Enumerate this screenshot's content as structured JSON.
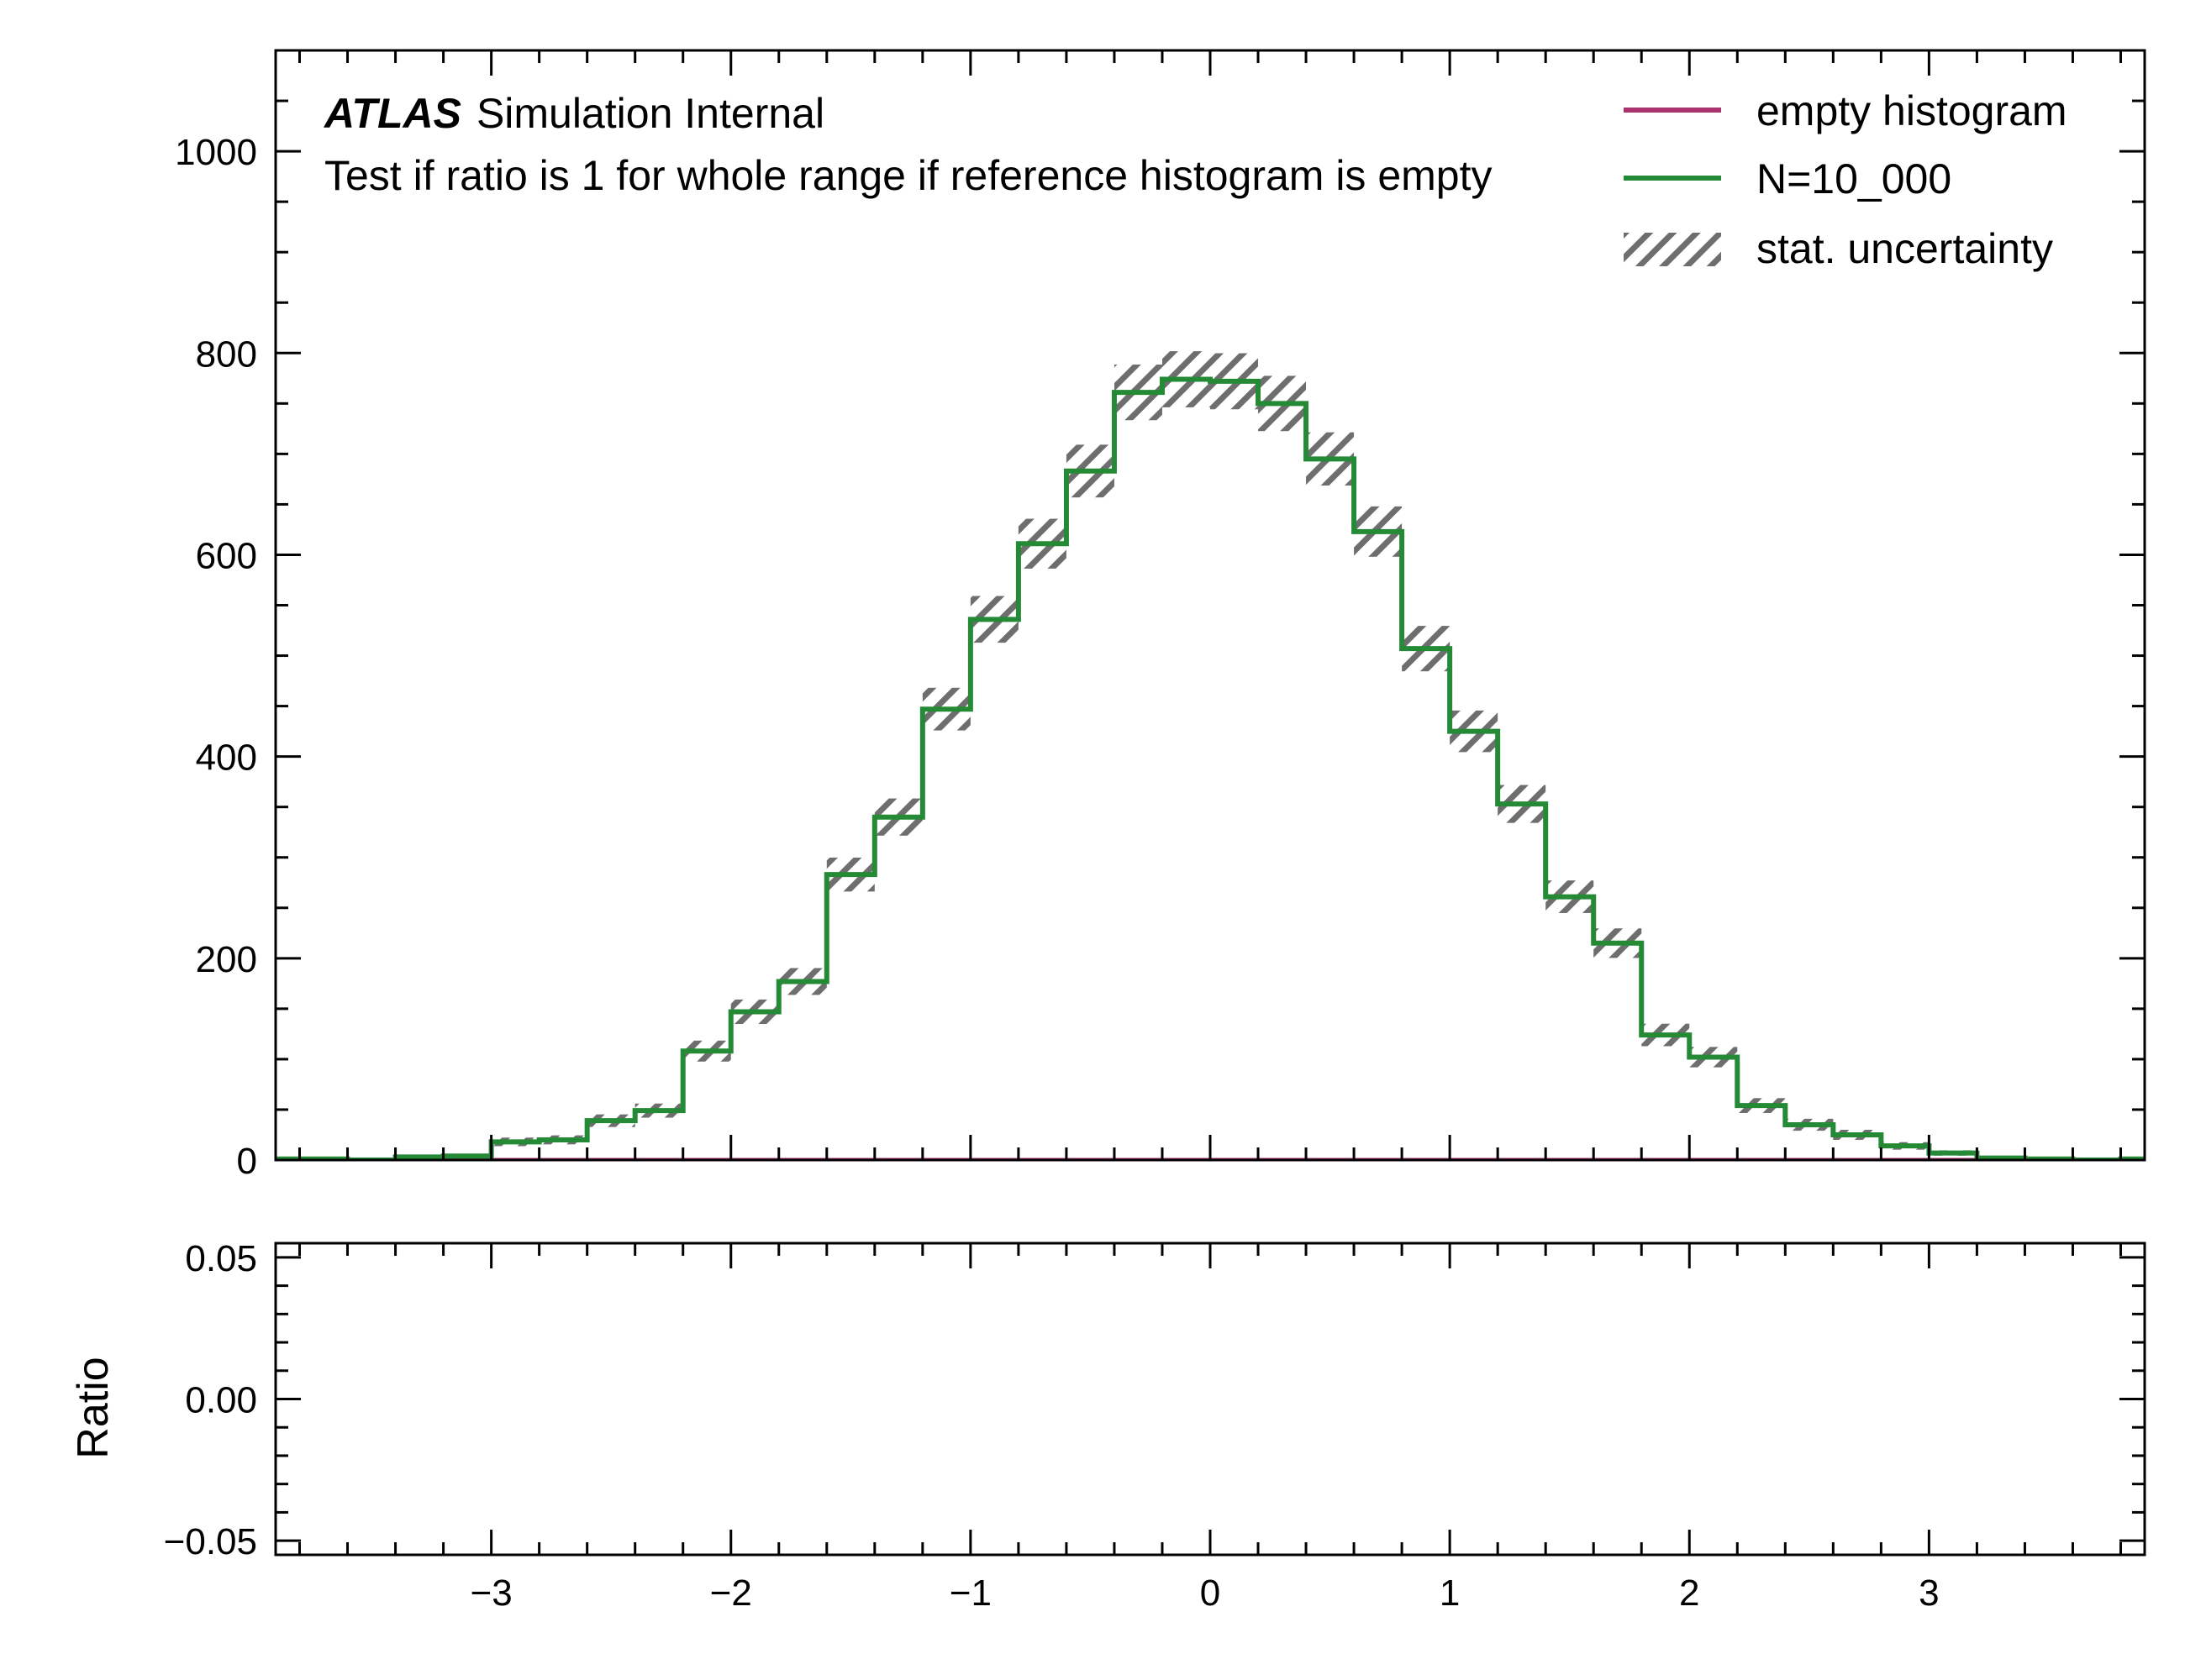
{
  "chart_data": [
    {
      "panel": "main",
      "type": "histogram",
      "experiment_label": "ATLAS",
      "status_label": "Simulation Internal",
      "subtitle": "Test if ratio is 1 for whole range if reference histogram is empty",
      "xlabel": "",
      "ylabel": "",
      "xlim": [
        -3.9,
        3.9
      ],
      "ylim": [
        0,
        1100
      ],
      "x_ticks": [
        -3,
        -2,
        -1,
        0,
        1,
        2,
        3
      ],
      "x_tick_labels": [
        "−3",
        "−2",
        "−1",
        "0",
        "1",
        "2",
        "3"
      ],
      "y_ticks": [
        0,
        200,
        400,
        600,
        800,
        1000
      ],
      "y_tick_labels": [
        "0",
        "200",
        "400",
        "600",
        "800",
        "1000"
      ],
      "bin_edges": [
        -4.0,
        -3.8,
        -3.6,
        -3.4,
        -3.2,
        -3.0,
        -2.8,
        -2.6,
        -2.4,
        -2.2,
        -2.0,
        -1.8,
        -1.6,
        -1.4,
        -1.2,
        -1.0,
        -0.8,
        -0.6,
        -0.4,
        -0.2,
        0.0,
        0.2,
        0.4,
        0.6,
        0.8,
        1.0,
        1.2,
        1.4,
        1.6,
        1.8,
        2.0,
        2.2,
        2.4,
        2.6,
        2.8,
        3.0,
        3.2,
        3.4,
        3.6,
        3.8,
        4.0
      ],
      "series": [
        {
          "name": "empty histogram",
          "color": "#a8336e",
          "values": [
            0,
            0,
            0,
            0,
            0,
            0,
            0,
            0,
            0,
            0,
            0,
            0,
            0,
            0,
            0,
            0,
            0,
            0,
            0,
            0,
            0,
            0,
            0,
            0,
            0,
            0,
            0,
            0,
            0,
            0,
            0,
            0,
            0,
            0,
            0,
            0,
            0,
            0,
            0,
            0
          ]
        },
        {
          "name": "N=10_000",
          "color": "#248a36",
          "values": [
            1,
            1,
            0,
            3,
            4,
            18,
            20,
            39,
            49,
            108,
            147,
            177,
            283,
            340,
            447,
            536,
            611,
            683,
            761,
            774,
            772,
            750,
            695,
            623,
            507,
            425,
            353,
            261,
            215,
            124,
            102,
            54,
            35,
            25,
            14,
            7,
            2,
            1,
            0,
            1
          ]
        }
      ],
      "uncertainty": {
        "name": "stat. uncertainty",
        "type": "sqrtN",
        "color": "#6e6e6e"
      },
      "legend_position": "top-right"
    },
    {
      "panel": "ratio",
      "type": "line",
      "xlabel": "",
      "ylabel": "Ratio",
      "xlim": [
        -3.9,
        3.9
      ],
      "ylim": [
        -0.055,
        0.055
      ],
      "y_ticks": [
        -0.05,
        0.0,
        0.05
      ],
      "y_tick_labels": [
        "−0.05",
        "0.00",
        "0.05"
      ],
      "series": []
    }
  ]
}
